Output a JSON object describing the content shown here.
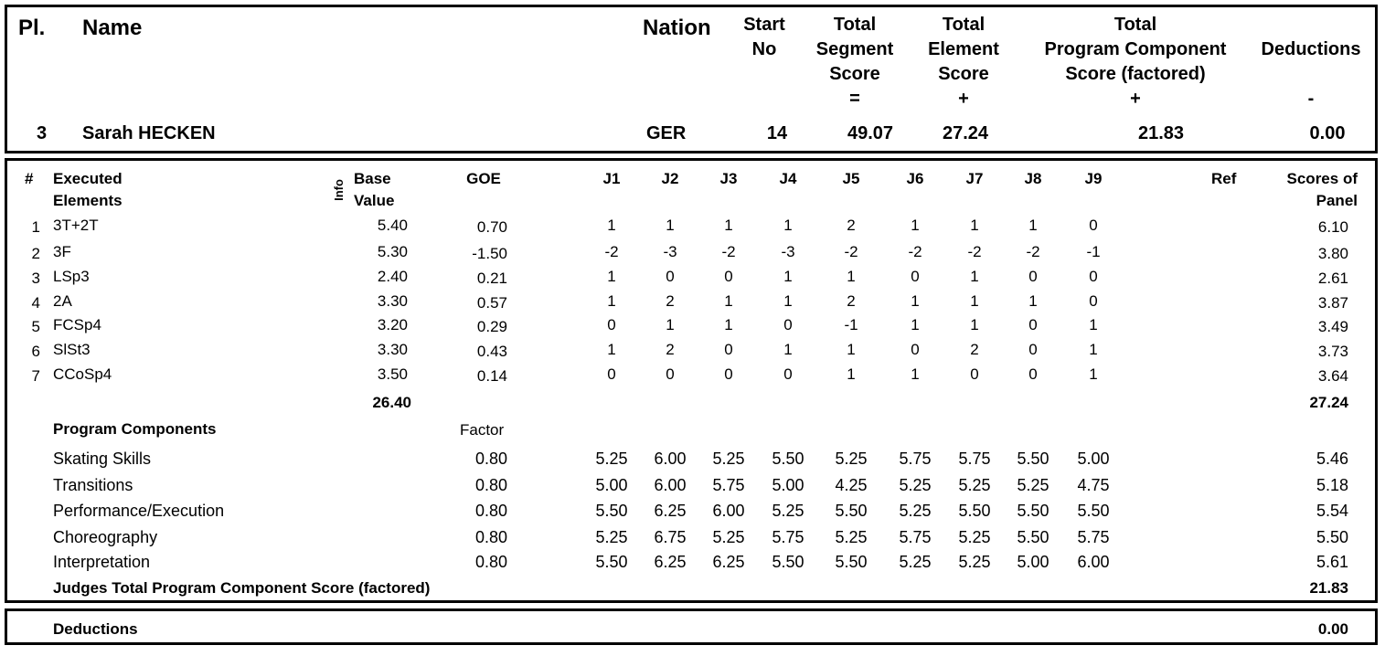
{
  "summary": {
    "headers": {
      "place": "Pl.",
      "name": "Name",
      "nation": "Nation",
      "start_no": [
        "Start",
        "No"
      ],
      "total_segment": [
        "Total",
        "Segment",
        "Score",
        "="
      ],
      "total_element": [
        "Total",
        "Element",
        "Score",
        "+"
      ],
      "total_pcs": [
        "Total",
        "Program Component",
        "Score (factored)",
        "+"
      ],
      "deductions": [
        "Deductions",
        "-"
      ]
    },
    "values": {
      "place": "3",
      "name": "Sarah HECKEN",
      "nation": "GER",
      "start_no": "14",
      "total_segment": "49.07",
      "total_element": "27.24",
      "total_pcs": "21.83",
      "deductions": "0.00"
    }
  },
  "elements_table": {
    "headers": {
      "num": "#",
      "executed": [
        "Executed",
        "Elements"
      ],
      "info": "Info",
      "base": [
        "Base",
        "Value"
      ],
      "goe": "GOE",
      "judges": [
        "J1",
        "J2",
        "J3",
        "J4",
        "J5",
        "J6",
        "J7",
        "J8",
        "J9"
      ],
      "ref": "Ref",
      "panel": [
        "Scores of",
        "Panel"
      ]
    },
    "rows": [
      {
        "num": "1",
        "element": "3T+2T",
        "base": "5.40",
        "goe": "0.70",
        "judges": [
          "1",
          "1",
          "1",
          "1",
          "2",
          "1",
          "1",
          "1",
          "0"
        ],
        "panel": "6.10"
      },
      {
        "num": "2",
        "element": "3F",
        "base": "5.30",
        "goe": "-1.50",
        "judges": [
          "-2",
          "-3",
          "-2",
          "-3",
          "-2",
          "-2",
          "-2",
          "-2",
          "-1"
        ],
        "panel": "3.80"
      },
      {
        "num": "3",
        "element": "LSp3",
        "base": "2.40",
        "goe": "0.21",
        "judges": [
          "1",
          "0",
          "0",
          "1",
          "1",
          "0",
          "1",
          "0",
          "0"
        ],
        "panel": "2.61"
      },
      {
        "num": "4",
        "element": "2A",
        "base": "3.30",
        "goe": "0.57",
        "judges": [
          "1",
          "2",
          "1",
          "1",
          "2",
          "1",
          "1",
          "1",
          "0"
        ],
        "panel": "3.87"
      },
      {
        "num": "5",
        "element": "FCSp4",
        "base": "3.20",
        "goe": "0.29",
        "judges": [
          "0",
          "1",
          "1",
          "0",
          "-1",
          "1",
          "1",
          "0",
          "1"
        ],
        "panel": "3.49"
      },
      {
        "num": "6",
        "element": "SlSt3",
        "base": "3.30",
        "goe": "0.43",
        "judges": [
          "1",
          "2",
          "0",
          "1",
          "1",
          "0",
          "2",
          "0",
          "1"
        ],
        "panel": "3.73"
      },
      {
        "num": "7",
        "element": "CCoSp4",
        "base": "3.50",
        "goe": "0.14",
        "judges": [
          "0",
          "0",
          "0",
          "0",
          "1",
          "1",
          "0",
          "0",
          "1"
        ],
        "panel": "3.64"
      }
    ],
    "base_total": "26.40",
    "panel_total": "27.24"
  },
  "program_components": {
    "title": "Program Components",
    "factor_label": "Factor",
    "rows": [
      {
        "name": "Skating Skills",
        "factor": "0.80",
        "judges": [
          "5.25",
          "6.00",
          "5.25",
          "5.50",
          "5.25",
          "5.75",
          "5.75",
          "5.50",
          "5.00"
        ],
        "panel": "5.46"
      },
      {
        "name": "Transitions",
        "factor": "0.80",
        "judges": [
          "5.00",
          "6.00",
          "5.75",
          "5.00",
          "4.25",
          "5.25",
          "5.25",
          "5.25",
          "4.75"
        ],
        "panel": "5.18"
      },
      {
        "name": "Performance/Execution",
        "factor": "0.80",
        "judges": [
          "5.50",
          "6.25",
          "6.00",
          "5.25",
          "5.50",
          "5.25",
          "5.50",
          "5.50",
          "5.50"
        ],
        "panel": "5.54"
      },
      {
        "name": "Choreography",
        "factor": "0.80",
        "judges": [
          "5.25",
          "6.75",
          "5.25",
          "5.75",
          "5.25",
          "5.75",
          "5.25",
          "5.50",
          "5.75"
        ],
        "panel": "5.50"
      },
      {
        "name": "Interpretation",
        "factor": "0.80",
        "judges": [
          "5.50",
          "6.25",
          "6.25",
          "5.50",
          "5.50",
          "5.25",
          "5.25",
          "5.00",
          "6.00"
        ],
        "panel": "5.61"
      }
    ],
    "total_label": "Judges Total Program Component Score (factored)",
    "total_value": "21.83"
  },
  "deductions": {
    "label": "Deductions",
    "value": "0.00"
  }
}
